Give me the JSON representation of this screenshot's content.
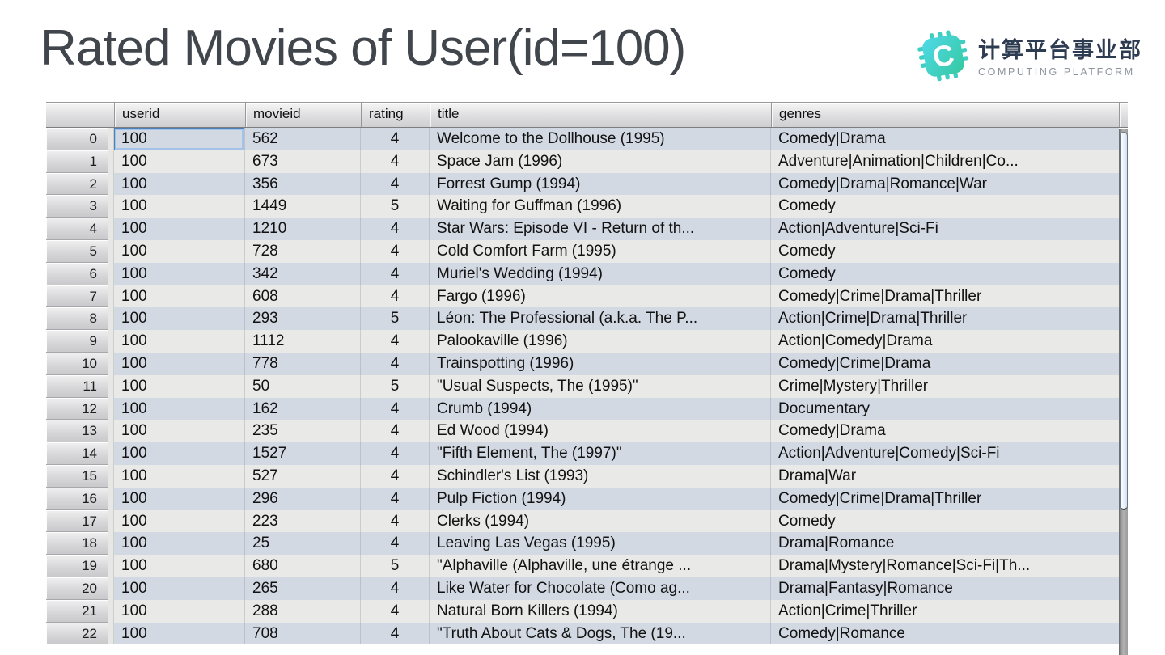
{
  "slide": {
    "title": "Rated Movies of User(id=100)"
  },
  "logo": {
    "icon": "chip-c-icon",
    "org_cn": "计算平台事业部",
    "org_en": "COMPUTING PLATFORM",
    "icon_gradient_start": "#4fd9e8",
    "icon_gradient_end": "#35c9a0",
    "cn_color": "#2e3c52",
    "en_color": "#8d939c"
  },
  "table": {
    "columns": [
      "userid",
      "movieid",
      "rating",
      "title",
      "genres"
    ],
    "selected_cell": {
      "row": 0,
      "column": "userid"
    },
    "colors": {
      "row_even": "#d3d9e3",
      "row_odd": "#e9e9e8",
      "selection_ring_outer": "#4e80b8",
      "selection_ring_inner": "#a3c3e8"
    },
    "rows": [
      {
        "index": "0",
        "userid": "100",
        "movieid": "562",
        "rating": "4",
        "title": "Welcome to the Dollhouse (1995)",
        "genres": "Comedy|Drama"
      },
      {
        "index": "1",
        "userid": "100",
        "movieid": "673",
        "rating": "4",
        "title": "Space Jam (1996)",
        "genres": "Adventure|Animation|Children|Co..."
      },
      {
        "index": "2",
        "userid": "100",
        "movieid": "356",
        "rating": "4",
        "title": "Forrest Gump (1994)",
        "genres": "Comedy|Drama|Romance|War"
      },
      {
        "index": "3",
        "userid": "100",
        "movieid": "1449",
        "rating": "5",
        "title": "Waiting for Guffman (1996)",
        "genres": "Comedy"
      },
      {
        "index": "4",
        "userid": "100",
        "movieid": "1210",
        "rating": "4",
        "title": "Star Wars: Episode VI - Return of th...",
        "genres": "Action|Adventure|Sci-Fi"
      },
      {
        "index": "5",
        "userid": "100",
        "movieid": "728",
        "rating": "4",
        "title": "Cold Comfort Farm (1995)",
        "genres": "Comedy"
      },
      {
        "index": "6",
        "userid": "100",
        "movieid": "342",
        "rating": "4",
        "title": "Muriel's Wedding (1994)",
        "genres": "Comedy"
      },
      {
        "index": "7",
        "userid": "100",
        "movieid": "608",
        "rating": "4",
        "title": "Fargo (1996)",
        "genres": "Comedy|Crime|Drama|Thriller"
      },
      {
        "index": "8",
        "userid": "100",
        "movieid": "293",
        "rating": "5",
        "title": "Léon: The Professional (a.k.a. The P...",
        "genres": "Action|Crime|Drama|Thriller"
      },
      {
        "index": "9",
        "userid": "100",
        "movieid": "1112",
        "rating": "4",
        "title": "Palookaville (1996)",
        "genres": "Action|Comedy|Drama"
      },
      {
        "index": "10",
        "userid": "100",
        "movieid": "778",
        "rating": "4",
        "title": "Trainspotting (1996)",
        "genres": "Comedy|Crime|Drama"
      },
      {
        "index": "11",
        "userid": "100",
        "movieid": "50",
        "rating": "5",
        "title": "\"Usual Suspects, The (1995)\"",
        "genres": "Crime|Mystery|Thriller"
      },
      {
        "index": "12",
        "userid": "100",
        "movieid": "162",
        "rating": "4",
        "title": "Crumb (1994)",
        "genres": "Documentary"
      },
      {
        "index": "13",
        "userid": "100",
        "movieid": "235",
        "rating": "4",
        "title": "Ed Wood (1994)",
        "genres": "Comedy|Drama"
      },
      {
        "index": "14",
        "userid": "100",
        "movieid": "1527",
        "rating": "4",
        "title": "\"Fifth Element, The (1997)\"",
        "genres": "Action|Adventure|Comedy|Sci-Fi"
      },
      {
        "index": "15",
        "userid": "100",
        "movieid": "527",
        "rating": "4",
        "title": "Schindler's List (1993)",
        "genres": "Drama|War"
      },
      {
        "index": "16",
        "userid": "100",
        "movieid": "296",
        "rating": "4",
        "title": "Pulp Fiction (1994)",
        "genres": "Comedy|Crime|Drama|Thriller"
      },
      {
        "index": "17",
        "userid": "100",
        "movieid": "223",
        "rating": "4",
        "title": "Clerks (1994)",
        "genres": "Comedy"
      },
      {
        "index": "18",
        "userid": "100",
        "movieid": "25",
        "rating": "4",
        "title": "Leaving Las Vegas (1995)",
        "genres": "Drama|Romance"
      },
      {
        "index": "19",
        "userid": "100",
        "movieid": "680",
        "rating": "5",
        "title": "\"Alphaville (Alphaville, une étrange ...",
        "genres": "Drama|Mystery|Romance|Sci-Fi|Th..."
      },
      {
        "index": "20",
        "userid": "100",
        "movieid": "265",
        "rating": "4",
        "title": "Like Water for Chocolate (Como ag...",
        "genres": "Drama|Fantasy|Romance"
      },
      {
        "index": "21",
        "userid": "100",
        "movieid": "288",
        "rating": "4",
        "title": "Natural Born Killers (1994)",
        "genres": "Action|Crime|Thriller"
      },
      {
        "index": "22",
        "userid": "100",
        "movieid": "708",
        "rating": "4",
        "title": "\"Truth About Cats & Dogs, The (19...",
        "genres": "Comedy|Romance"
      }
    ]
  }
}
